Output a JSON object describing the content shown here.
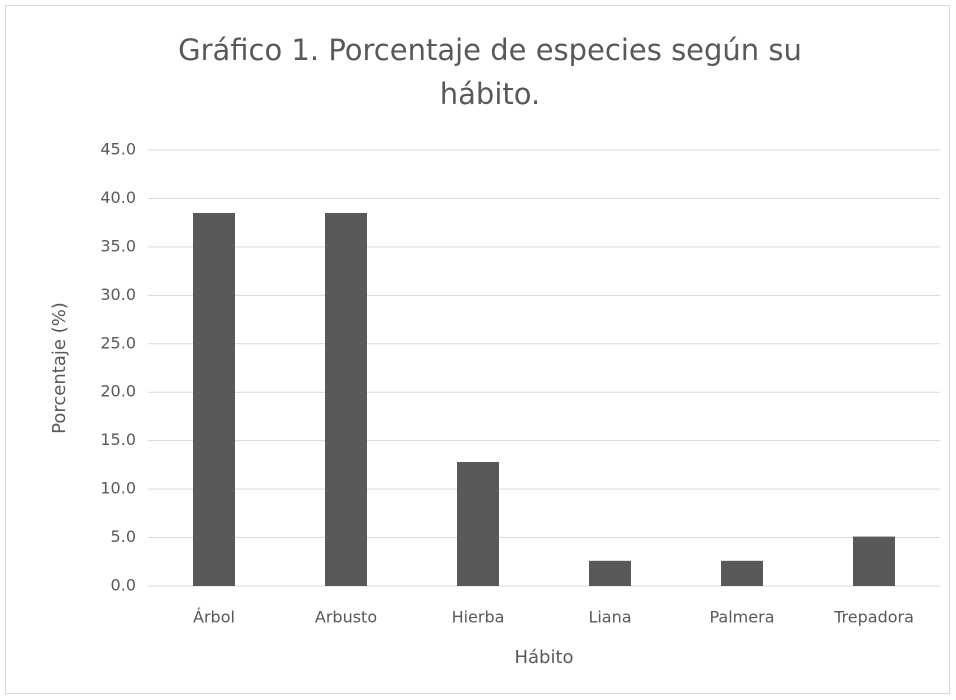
{
  "chart_data": {
    "type": "bar",
    "title": "Gráfico 1. Porcentaje de especies según su hábito.",
    "x_label": "Hábito",
    "y_label": "Porcentaje (%)",
    "categories": [
      "Árbol",
      "Arbusto",
      "Hierba",
      "Liana",
      "Palmera",
      "Trepadora"
    ],
    "values": [
      38.5,
      38.5,
      12.8,
      2.6,
      2.6,
      5.1
    ],
    "color": "#595959",
    "ylim": [
      0,
      45
    ],
    "yticks": [
      {
        "value": 0,
        "label": "0.0"
      },
      {
        "value": 5,
        "label": "5.0"
      },
      {
        "value": 10,
        "label": "10.0"
      },
      {
        "value": 15,
        "label": "15.0"
      },
      {
        "value": 20,
        "label": "20.0"
      },
      {
        "value": 25,
        "label": "25.0"
      },
      {
        "value": 30,
        "label": "30.0"
      },
      {
        "value": 35,
        "label": "35.0"
      },
      {
        "value": 40,
        "label": "40.0"
      },
      {
        "value": 45,
        "label": "45.0"
      }
    ],
    "grid": true
  }
}
